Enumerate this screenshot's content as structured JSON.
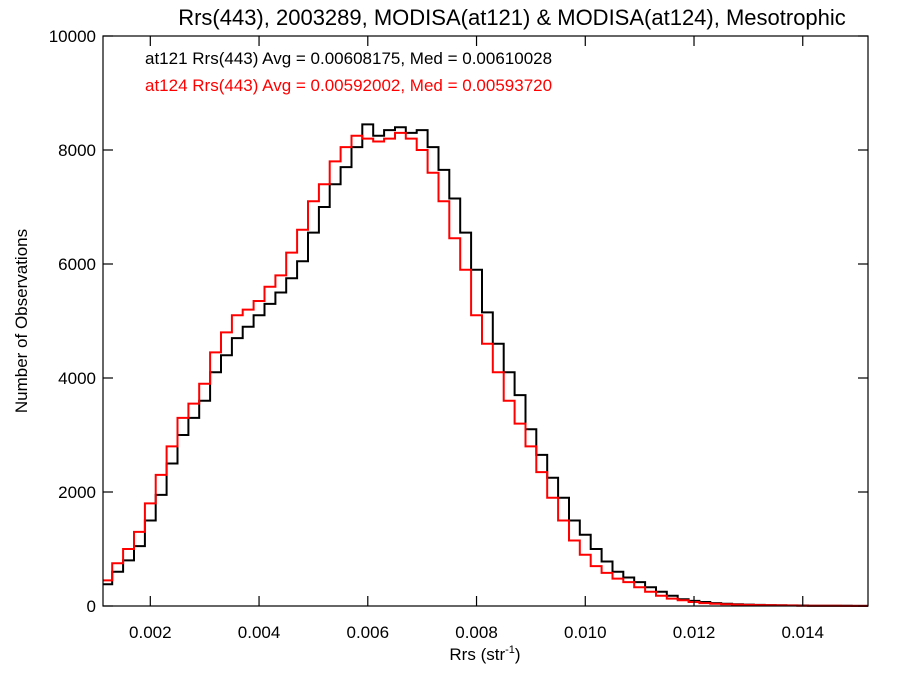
{
  "chart_data": {
    "type": "line",
    "style": "step-histogram",
    "title": "Rrs(443), 2003289, MODISA(at121) & MODISA(at124), Mesotrophic",
    "xlabel_main": "Rrs (str",
    "xlabel_sup": "-1",
    "xlabel_tail": ")",
    "ylabel": "Number of Observations",
    "xlim": [
      0.00113,
      0.0152
    ],
    "ylim": [
      0,
      10000
    ],
    "xticks": [
      0.002,
      0.004,
      0.006,
      0.008,
      0.01,
      0.012,
      0.014
    ],
    "xtick_labels": [
      "0.002",
      "0.004",
      "0.006",
      "0.008",
      "0.010",
      "0.012",
      "0.014"
    ],
    "yticks": [
      0,
      2000,
      4000,
      6000,
      8000,
      10000
    ],
    "ytick_labels": [
      "0",
      "2000",
      "4000",
      "6000",
      "8000",
      "10000"
    ],
    "grid": false,
    "legend_placement": "top-left",
    "series": [
      {
        "legend": "at121 Rrs(443) Avg = 0.00608175, Med = 0.00610028",
        "color": "#000000",
        "x": [
          0.00113,
          0.0013,
          0.0015,
          0.0017,
          0.0019,
          0.0021,
          0.0023,
          0.0025,
          0.0027,
          0.0029,
          0.0031,
          0.0033,
          0.0035,
          0.0037,
          0.0039,
          0.0041,
          0.0043,
          0.0045,
          0.0047,
          0.0049,
          0.0051,
          0.0053,
          0.0055,
          0.0057,
          0.0059,
          0.0061,
          0.0063,
          0.0065,
          0.0067,
          0.0069,
          0.0071,
          0.0073,
          0.0075,
          0.0077,
          0.0079,
          0.0081,
          0.0083,
          0.0085,
          0.0087,
          0.0089,
          0.0091,
          0.0093,
          0.0095,
          0.0097,
          0.0099,
          0.0101,
          0.0103,
          0.0105,
          0.0107,
          0.0109,
          0.0111,
          0.0113,
          0.0115,
          0.0117,
          0.0119,
          0.0121,
          0.0123,
          0.0125,
          0.0127,
          0.0129,
          0.0131,
          0.0133,
          0.0135,
          0.0137,
          0.0139,
          0.0141,
          0.0143,
          0.0145,
          0.0147,
          0.0149,
          0.0152
        ],
        "values": [
          380,
          600,
          800,
          1050,
          1500,
          1950,
          2500,
          3000,
          3300,
          3600,
          4100,
          4400,
          4700,
          4900,
          5100,
          5300,
          5500,
          5750,
          6050,
          6550,
          7000,
          7400,
          7700,
          8050,
          8450,
          8250,
          8350,
          8400,
          8300,
          8350,
          8050,
          7650,
          7150,
          6550,
          5900,
          5150,
          4600,
          4100,
          3700,
          3100,
          2650,
          2250,
          1900,
          1500,
          1250,
          1000,
          780,
          600,
          500,
          420,
          330,
          250,
          180,
          120,
          90,
          70,
          50,
          40,
          30,
          25,
          20,
          15,
          12,
          10,
          8,
          6,
          5,
          4,
          3,
          2,
          2
        ]
      },
      {
        "legend": "at124 Rrs(443) Avg = 0.00592002, Med = 0.00593720",
        "color": "#ff0000",
        "x": [
          0.00113,
          0.0013,
          0.0015,
          0.0017,
          0.0019,
          0.0021,
          0.0023,
          0.0025,
          0.0027,
          0.0029,
          0.0031,
          0.0033,
          0.0035,
          0.0037,
          0.0039,
          0.0041,
          0.0043,
          0.0045,
          0.0047,
          0.0049,
          0.0051,
          0.0053,
          0.0055,
          0.0057,
          0.0059,
          0.0061,
          0.0063,
          0.0065,
          0.0067,
          0.0069,
          0.0071,
          0.0073,
          0.0075,
          0.0077,
          0.0079,
          0.0081,
          0.0083,
          0.0085,
          0.0087,
          0.0089,
          0.0091,
          0.0093,
          0.0095,
          0.0097,
          0.0099,
          0.0101,
          0.0103,
          0.0105,
          0.0107,
          0.0109,
          0.0111,
          0.0113,
          0.0115,
          0.0117,
          0.0119,
          0.0121,
          0.0123,
          0.0125,
          0.0127,
          0.0129,
          0.0131,
          0.0133,
          0.0135,
          0.0137,
          0.0139,
          0.0141,
          0.0143,
          0.0145,
          0.0147,
          0.0149,
          0.0152
        ],
        "values": [
          450,
          750,
          1000,
          1300,
          1800,
          2300,
          2800,
          3300,
          3550,
          3900,
          4450,
          4800,
          5100,
          5200,
          5350,
          5600,
          5800,
          6200,
          6600,
          7100,
          7400,
          7800,
          8050,
          8250,
          8200,
          8150,
          8200,
          8300,
          8200,
          8000,
          7600,
          7100,
          6450,
          5900,
          5100,
          4600,
          4100,
          3600,
          3200,
          2800,
          2350,
          1900,
          1500,
          1150,
          900,
          700,
          580,
          480,
          420,
          330,
          250,
          180,
          130,
          100,
          70,
          50,
          40,
          30,
          25,
          20,
          15,
          12,
          10,
          8,
          6,
          5,
          4,
          3,
          2,
          2,
          1
        ]
      }
    ]
  }
}
